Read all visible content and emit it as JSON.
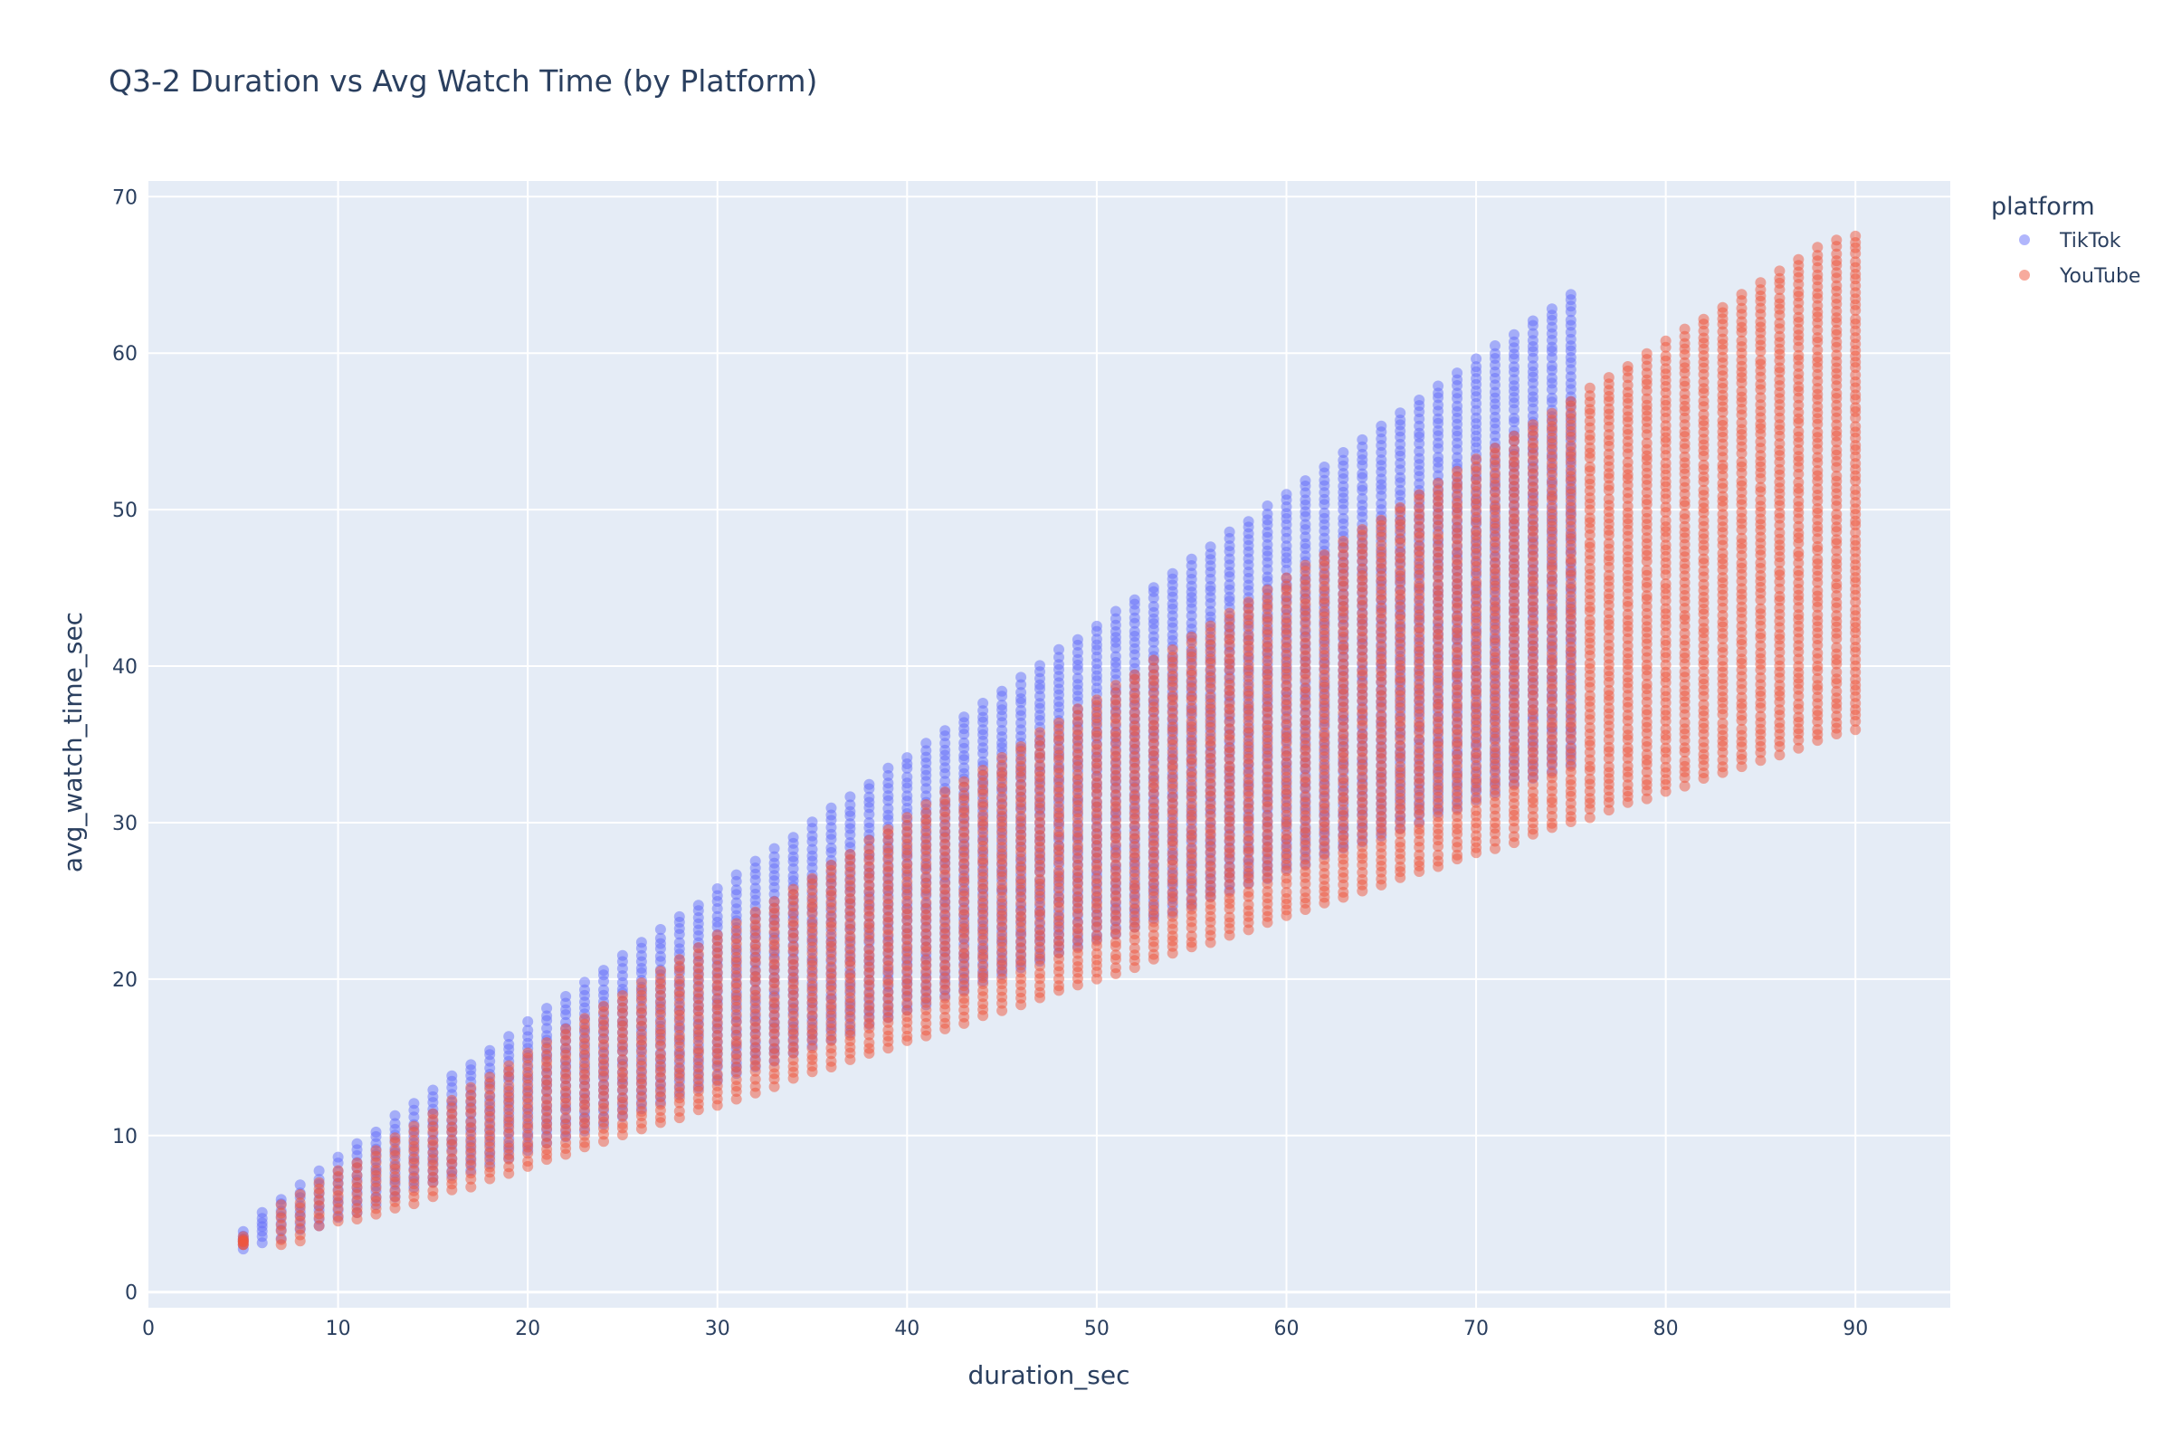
{
  "chart_data": {
    "type": "scatter",
    "title": "Q3-2 Duration vs Avg Watch Time (by Platform)",
    "xlabel": "duration_sec",
    "ylabel": "avg_watch_time_sec",
    "xlim": [
      0,
      95
    ],
    "ylim": [
      -1,
      71
    ],
    "xticks": [
      0,
      10,
      20,
      30,
      40,
      50,
      60,
      70,
      80,
      90
    ],
    "yticks": [
      0,
      10,
      20,
      30,
      40,
      50,
      60,
      70
    ],
    "grid": true,
    "legend": {
      "title": "platform",
      "position": "right"
    },
    "series": [
      {
        "name": "TikTok",
        "color": "#636efa",
        "x_range": [
          5,
          75
        ],
        "columns": [
          [
            5,
            2.8,
            3.8
          ],
          [
            6,
            3.2,
            5.1
          ],
          [
            7,
            3.5,
            6.0
          ],
          [
            8,
            4.0,
            6.8
          ],
          [
            9,
            4.3,
            7.7
          ],
          [
            10,
            4.8,
            8.6
          ],
          [
            11,
            5.1,
            9.5
          ],
          [
            12,
            5.6,
            10.3
          ],
          [
            13,
            6.1,
            11.2
          ],
          [
            14,
            6.6,
            12.0
          ],
          [
            15,
            7.0,
            12.9
          ],
          [
            16,
            7.4,
            13.8
          ],
          [
            17,
            7.8,
            14.6
          ],
          [
            18,
            8.2,
            15.5
          ],
          [
            19,
            8.6,
            16.3
          ],
          [
            20,
            9.0,
            17.2
          ],
          [
            21,
            9.5,
            18.1
          ],
          [
            22,
            9.9,
            18.9
          ],
          [
            23,
            10.3,
            19.8
          ],
          [
            24,
            10.8,
            20.6
          ],
          [
            25,
            11.2,
            21.5
          ],
          [
            26,
            11.7,
            22.4
          ],
          [
            27,
            12.1,
            23.1
          ],
          [
            28,
            12.6,
            24.0
          ],
          [
            29,
            13.0,
            24.8
          ],
          [
            30,
            13.5,
            25.7
          ],
          [
            31,
            13.9,
            26.6
          ],
          [
            32,
            14.4,
            27.5
          ],
          [
            33,
            14.8,
            28.3
          ],
          [
            34,
            15.3,
            29.1
          ],
          [
            35,
            15.7,
            30.0
          ],
          [
            36,
            16.2,
            30.9
          ],
          [
            37,
            16.6,
            31.6
          ],
          [
            38,
            17.1,
            32.5
          ],
          [
            39,
            17.5,
            33.4
          ],
          [
            40,
            18.0,
            34.2
          ],
          [
            41,
            18.4,
            35.0
          ],
          [
            42,
            18.9,
            35.9
          ],
          [
            43,
            19.3,
            36.8
          ],
          [
            44,
            19.8,
            37.6
          ],
          [
            45,
            20.2,
            38.4
          ],
          [
            46,
            20.7,
            39.2
          ],
          [
            47,
            21.1,
            40.1
          ],
          [
            48,
            21.6,
            41.0
          ],
          [
            49,
            22.0,
            41.7
          ],
          [
            50,
            22.5,
            42.6
          ],
          [
            51,
            22.9,
            43.5
          ],
          [
            52,
            23.4,
            44.3
          ],
          [
            53,
            23.8,
            45.1
          ],
          [
            54,
            24.3,
            46.0
          ],
          [
            55,
            24.7,
            46.8
          ],
          [
            56,
            25.2,
            47.6
          ],
          [
            57,
            25.6,
            48.5
          ],
          [
            58,
            26.1,
            49.3
          ],
          [
            59,
            26.5,
            50.2
          ],
          [
            60,
            27.0,
            51.0
          ],
          [
            61,
            27.4,
            51.9
          ],
          [
            62,
            27.9,
            52.7
          ],
          [
            63,
            28.3,
            53.6
          ],
          [
            64,
            28.8,
            54.4
          ],
          [
            65,
            29.2,
            55.3
          ],
          [
            66,
            29.7,
            56.2
          ],
          [
            67,
            30.1,
            57.0
          ],
          [
            68,
            30.6,
            57.9
          ],
          [
            69,
            31.0,
            58.7
          ],
          [
            70,
            31.5,
            59.6
          ],
          [
            71,
            31.9,
            60.4
          ],
          [
            72,
            32.4,
            61.2
          ],
          [
            73,
            32.8,
            62.1
          ],
          [
            74,
            33.3,
            62.9
          ],
          [
            75,
            33.7,
            63.8
          ]
        ]
      },
      {
        "name": "YouTube",
        "color": "#ef553b",
        "x_range": [
          5,
          90
        ],
        "columns": [
          [
            5,
            3.0,
            3.5
          ],
          [
            7,
            3.0,
            5.5
          ],
          [
            8,
            3.2,
            6.2
          ],
          [
            9,
            4.3,
            7.0
          ],
          [
            10,
            4.5,
            7.7
          ],
          [
            11,
            4.6,
            8.3
          ],
          [
            12,
            4.9,
            9.1
          ],
          [
            13,
            5.3,
            9.9
          ],
          [
            14,
            5.7,
            10.6
          ],
          [
            15,
            6.1,
            11.4
          ],
          [
            16,
            6.5,
            12.2
          ],
          [
            17,
            6.8,
            13.0
          ],
          [
            18,
            7.2,
            13.7
          ],
          [
            19,
            7.6,
            14.5
          ],
          [
            20,
            8.0,
            15.3
          ],
          [
            21,
            8.4,
            16.0
          ],
          [
            22,
            8.8,
            16.8
          ],
          [
            23,
            9.2,
            17.5
          ],
          [
            24,
            9.6,
            18.3
          ],
          [
            25,
            10.0,
            19.0
          ],
          [
            26,
            10.4,
            19.8
          ],
          [
            27,
            10.8,
            20.5
          ],
          [
            28,
            11.2,
            21.3
          ],
          [
            29,
            11.6,
            22.0
          ],
          [
            30,
            12.0,
            22.8
          ],
          [
            31,
            12.4,
            23.5
          ],
          [
            32,
            12.8,
            24.3
          ],
          [
            33,
            13.2,
            25.0
          ],
          [
            34,
            13.6,
            25.8
          ],
          [
            35,
            14.0,
            26.5
          ],
          [
            36,
            14.4,
            27.3
          ],
          [
            37,
            14.8,
            28.0
          ],
          [
            38,
            15.2,
            28.8
          ],
          [
            39,
            15.6,
            29.6
          ],
          [
            40,
            16.0,
            30.3
          ],
          [
            41,
            16.4,
            31.1
          ],
          [
            42,
            16.8,
            31.9
          ],
          [
            43,
            17.2,
            32.6
          ],
          [
            44,
            17.6,
            33.4
          ],
          [
            45,
            18.0,
            34.1
          ],
          [
            46,
            18.4,
            34.9
          ],
          [
            47,
            18.8,
            35.7
          ],
          [
            48,
            19.2,
            36.4
          ],
          [
            49,
            19.6,
            37.2
          ],
          [
            50,
            20.0,
            37.9
          ],
          [
            51,
            20.4,
            38.7
          ],
          [
            52,
            20.8,
            39.5
          ],
          [
            53,
            21.2,
            40.3
          ],
          [
            54,
            21.6,
            41.0
          ],
          [
            55,
            22.0,
            41.8
          ],
          [
            56,
            22.4,
            42.5
          ],
          [
            57,
            22.8,
            43.3
          ],
          [
            58,
            23.2,
            44.1
          ],
          [
            59,
            23.6,
            44.8
          ],
          [
            60,
            24.0,
            45.6
          ],
          [
            61,
            24.4,
            46.4
          ],
          [
            62,
            24.8,
            47.2
          ],
          [
            63,
            25.2,
            47.9
          ],
          [
            64,
            25.6,
            48.7
          ],
          [
            65,
            26.0,
            49.4
          ],
          [
            66,
            26.4,
            50.2
          ],
          [
            67,
            26.8,
            51.0
          ],
          [
            68,
            27.2,
            51.7
          ],
          [
            69,
            27.6,
            52.5
          ],
          [
            70,
            28.0,
            53.2
          ],
          [
            71,
            28.4,
            54.0
          ],
          [
            72,
            28.8,
            54.7
          ],
          [
            73,
            29.2,
            55.5
          ],
          [
            74,
            29.6,
            56.2
          ],
          [
            75,
            30.0,
            57.0
          ],
          [
            76,
            30.4,
            57.7
          ],
          [
            77,
            30.8,
            58.5
          ],
          [
            78,
            31.2,
            59.2
          ],
          [
            79,
            31.6,
            60.0
          ],
          [
            80,
            32.0,
            60.7
          ],
          [
            81,
            32.4,
            61.5
          ],
          [
            82,
            32.8,
            62.2
          ],
          [
            83,
            33.2,
            63.0
          ],
          [
            84,
            33.6,
            63.7
          ],
          [
            85,
            34.0,
            64.5
          ],
          [
            86,
            34.4,
            65.2
          ],
          [
            87,
            34.8,
            66.0
          ],
          [
            88,
            35.2,
            66.7
          ],
          [
            89,
            35.6,
            67.2
          ],
          [
            90,
            36.0,
            67.5
          ]
        ]
      }
    ]
  }
}
